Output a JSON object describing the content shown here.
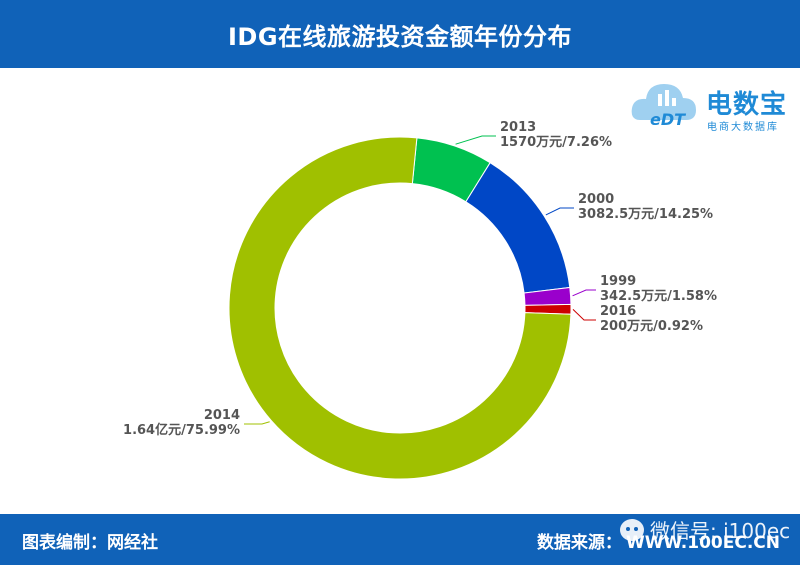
{
  "header": {
    "title": "IDG在线旅游投资金额年份分布"
  },
  "footer": {
    "left": "图表编制：网经社",
    "right_label": "数据来源：",
    "right_url": "WWW.100EC.CN"
  },
  "watermark": {
    "text": "微信号: i100ec"
  },
  "logo": {
    "name": "电数宝",
    "subtitle": "电商大数据库",
    "mark": "eDT"
  },
  "chart_data": {
    "type": "pie",
    "variant": "donut",
    "slices": [
      {
        "year": "2013",
        "value": 1570,
        "share": 7.26,
        "label": "1570万元/7.26%",
        "color": "#00c150"
      },
      {
        "year": "2000",
        "value": 3082.5,
        "share": 14.25,
        "label": "3082.5万元/14.25%",
        "color": "#0047c6"
      },
      {
        "year": "1999",
        "value": 342.5,
        "share": 1.58,
        "label": "342.5万元/1.58%",
        "color": "#9a00cc"
      },
      {
        "year": "2016",
        "value": 200,
        "share": 0.92,
        "label": "200万元/0.92%",
        "color": "#cc0000"
      },
      {
        "year": "2014",
        "value": 16400,
        "share": 75.99,
        "label": "1.64亿元/75.99%",
        "color": "#a0c000"
      }
    ],
    "unit": "万元"
  }
}
